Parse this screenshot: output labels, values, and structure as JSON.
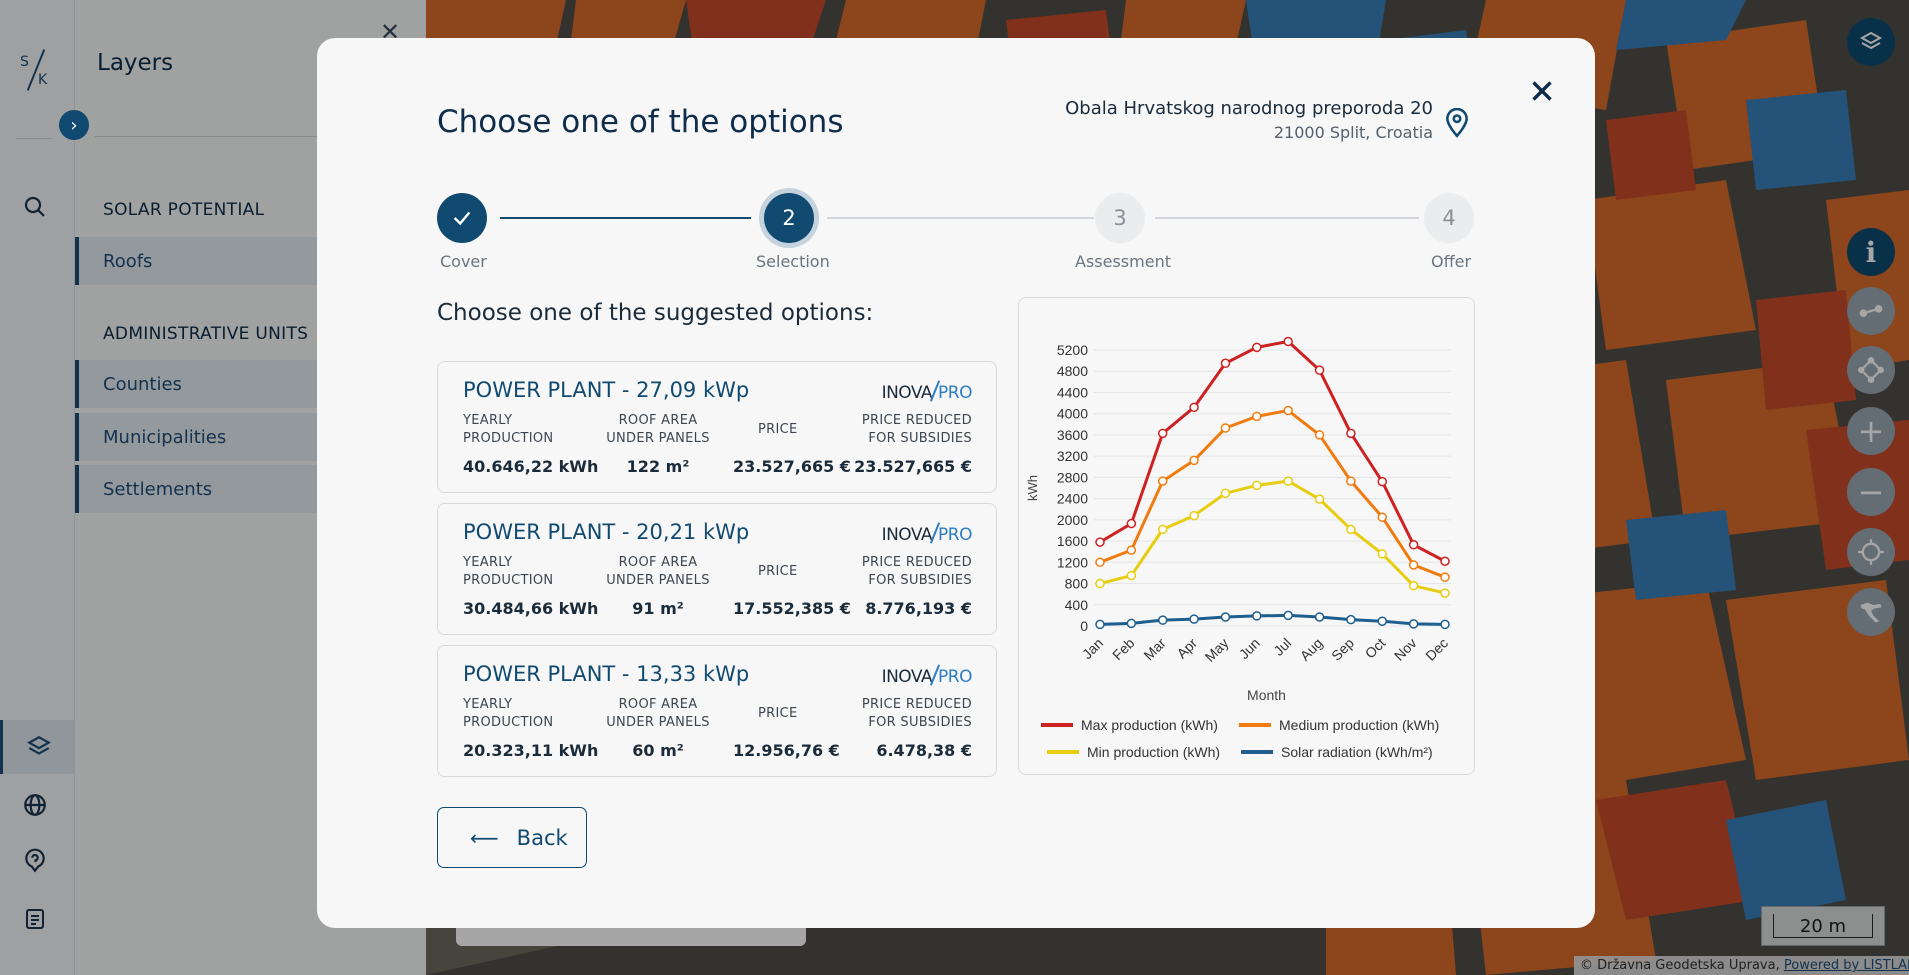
{
  "sidebar": {
    "logo_s": "S",
    "logo_k": "K",
    "icons": [
      "search-icon",
      "layers-icon",
      "globe-icon",
      "help-icon",
      "document-icon"
    ]
  },
  "layers_panel": {
    "title": "Layers",
    "section_solar": "SOLAR POTENTIAL",
    "section_admin": "ADMINISTRATIVE UNITS",
    "items": [
      {
        "label": "Roofs"
      },
      {
        "label": "Counties"
      },
      {
        "label": "Municipalities"
      },
      {
        "label": "Settlements"
      }
    ]
  },
  "modal": {
    "title": "Choose one of the options",
    "address_line1": "Obala Hrvatskog narodnog preporoda 20",
    "address_line2": "21000 Split, Croatia",
    "steps": [
      {
        "label": "Cover",
        "number": "",
        "state": "done"
      },
      {
        "label": "Selection",
        "number": "2",
        "state": "current"
      },
      {
        "label": "Assessment",
        "number": "3",
        "state": "todo"
      },
      {
        "label": "Offer",
        "number": "4",
        "state": "todo"
      }
    ],
    "subtitle": "Choose one of the suggested options:",
    "brand_a": "INOVA",
    "brand_b": "PRO",
    "columns": {
      "yearly_l1": "YEARLY",
      "yearly_l2": "PRODUCTION",
      "roof_l1": "ROOF AREA",
      "roof_l2": "UNDER PANELS",
      "price": "PRICE",
      "reduced_l1": "PRICE REDUCED",
      "reduced_l2": "FOR SUBSIDIES"
    },
    "options": [
      {
        "title": "POWER PLANT - 27,09 kWp",
        "production": "40.646,22 kWh",
        "roof_area": "122 m²",
        "price": "23.527,665 €",
        "reduced_price": "23.527,665 €"
      },
      {
        "title": "POWER PLANT - 20,21 kWp",
        "production": "30.484,66 kWh",
        "roof_area": "91 m²",
        "price": "17.552,385 €",
        "reduced_price": "8.776,193 €"
      },
      {
        "title": "POWER PLANT - 13,33 kWp",
        "production": "20.323,11 kWh",
        "roof_area": "60 m²",
        "price": "12.956,76 €",
        "reduced_price": "6.478,38 €"
      }
    ],
    "back_label": "Back"
  },
  "map": {
    "scale_label": "20 m",
    "attribution": "© Državna Geodetska Uprava,",
    "attribution_link": "Powered by LISTLABS"
  },
  "colors": {
    "primary": "#114a70",
    "max": "#cc2222",
    "medium": "#f07c10",
    "min": "#e8cc10",
    "radiation": "#1e5f8f"
  },
  "chart_data": {
    "type": "line",
    "categories": [
      "Jan",
      "Feb",
      "Mar",
      "Apr",
      "May",
      "Jun",
      "Jul",
      "Aug",
      "Sep",
      "Oct",
      "Nov",
      "Dec"
    ],
    "xlabel": "Month",
    "ylabel": "kWh",
    "ylim": [
      0,
      5200
    ],
    "yticks": [
      0,
      400,
      800,
      1200,
      1600,
      2000,
      2400,
      2800,
      3200,
      3600,
      4000,
      4400,
      4800,
      5200
    ],
    "grid": true,
    "legend": "bottom",
    "series": [
      {
        "name": "Max production (kWh)",
        "color": "#cc2222",
        "values": [
          1580,
          1930,
          3630,
          4120,
          4950,
          5250,
          5360,
          4820,
          3630,
          2720,
          1530,
          1220
        ]
      },
      {
        "name": "Medium production (kWh)",
        "color": "#f07c10",
        "values": [
          1200,
          1430,
          2730,
          3120,
          3730,
          3950,
          4060,
          3600,
          2730,
          2050,
          1150,
          920
        ]
      },
      {
        "name": "Min production (kWh)",
        "color": "#e8cc10",
        "values": [
          800,
          950,
          1820,
          2080,
          2500,
          2650,
          2730,
          2390,
          1820,
          1360,
          760,
          620
        ]
      },
      {
        "name": "Solar radiation (kWh/m²)",
        "color": "#1e5f8f",
        "values": [
          30,
          50,
          110,
          130,
          170,
          190,
          200,
          170,
          120,
          90,
          40,
          30
        ]
      }
    ]
  }
}
